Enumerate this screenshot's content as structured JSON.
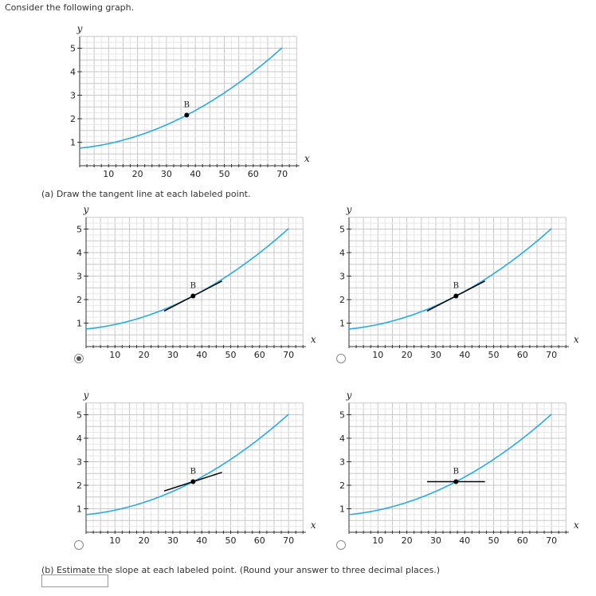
{
  "question": {
    "intro": "Consider the following graph.",
    "part_a": "(a) Draw the tangent line at each labeled point.",
    "part_b": "(b) Estimate the slope at each labeled point. (Round your answer to three decimal places.)"
  },
  "graph": {
    "x_label": "x",
    "y_label": "y",
    "x_ticks": [
      "10",
      "20",
      "30",
      "40",
      "50",
      "60",
      "70"
    ],
    "y_ticks": [
      "1",
      "2",
      "3",
      "4",
      "5"
    ],
    "point_label": "B",
    "curve_color": "#29abe2",
    "point": {
      "x": 37,
      "y": 2.15
    }
  },
  "options": [
    {
      "id": "a",
      "selected": true,
      "tangent": "correct-tangent"
    },
    {
      "id": "b",
      "selected": false,
      "tangent": "correct-tangent"
    },
    {
      "id": "c",
      "selected": false,
      "tangent": "shallow-tangent"
    },
    {
      "id": "d",
      "selected": false,
      "tangent": "horizontal-line"
    }
  ],
  "answer_input": {
    "value": ""
  }
}
